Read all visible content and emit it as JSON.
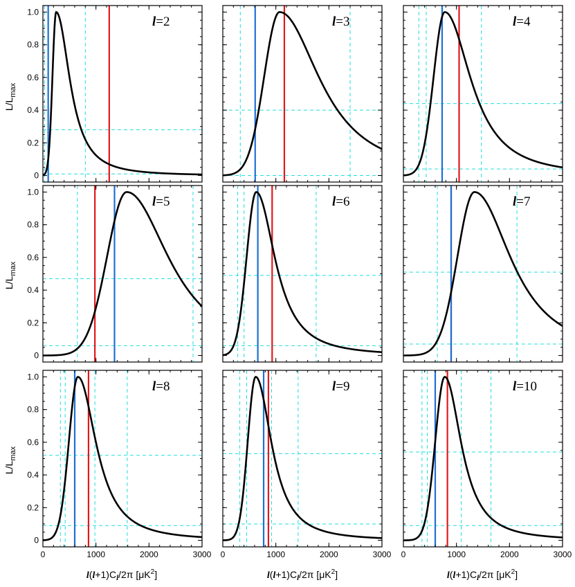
{
  "chart_data": {
    "type": "line",
    "layout": "3x3 grid",
    "x_axis": {
      "label_parts": [
        "l",
        "(",
        "l",
        "+1)C",
        "l",
        "/2π [μK",
        "2",
        "]"
      ],
      "xlim": [
        0,
        3000
      ],
      "ticks": [
        0,
        1000,
        2000,
        3000
      ],
      "tick_labels": [
        "0",
        "1000",
        "2000",
        "3000"
      ]
    },
    "y_axis": {
      "label_parts": [
        "L/L",
        "max"
      ],
      "ylim": [
        -0.04,
        1.04
      ],
      "ticks": [
        0,
        0.2,
        0.4,
        0.6,
        0.8,
        1.0
      ],
      "tick_labels": [
        "0",
        "0.2",
        "0.4",
        "0.6",
        "0.8",
        "1.0"
      ]
    },
    "colors": {
      "curve": "#000000",
      "blue_line": "#1f6fd6",
      "red_line": "#e0191c",
      "dashed": "#22dddd"
    },
    "panels": [
      {
        "ell_symbol": "l",
        "label": "=2",
        "peak_x": 250,
        "sigma_lo": 70,
        "sigma_hi": 230,
        "blue_x": 100,
        "red_x": 1250,
        "dashed_v": [
          30,
          100,
          800
        ],
        "dashed_h": [
          0.01,
          0.28
        ]
      },
      {
        "ell_symbol": "l",
        "label": "=3",
        "peak_x": 1070,
        "sigma_lo": 290,
        "sigma_hi": 680,
        "blue_x": 610,
        "red_x": 1160,
        "dashed_v": [
          330,
          2400
        ],
        "dashed_h": [
          0.0,
          0.4
        ]
      },
      {
        "ell_symbol": "l",
        "label": "=4",
        "peak_x": 780,
        "sigma_lo": 210,
        "sigma_hi": 440,
        "blue_x": 730,
        "red_x": 1050,
        "dashed_v": [
          290,
          430,
          1470
        ],
        "dashed_h": [
          0.04,
          0.44
        ]
      },
      {
        "ell_symbol": "l",
        "label": "=5",
        "peak_x": 1580,
        "sigma_lo": 370,
        "sigma_hi": 720,
        "blue_x": 1350,
        "red_x": 980,
        "dashed_v": [
          650,
          2830
        ],
        "dashed_h": [
          0.06,
          0.47
        ]
      },
      {
        "ell_symbol": "l",
        "label": "=6",
        "peak_x": 630,
        "sigma_lo": 180,
        "sigma_hi": 320,
        "blue_x": 660,
        "red_x": 930,
        "dashed_v": [
          280,
          400,
          1760
        ],
        "dashed_h": [
          0.06,
          0.49
        ]
      },
      {
        "ell_symbol": "l",
        "label": "=7",
        "peak_x": 1340,
        "sigma_lo": 320,
        "sigma_hi": 620,
        "blue_x": 900,
        "red_x": 900,
        "dashed_v": [
          640,
          2140
        ],
        "dashed_h": [
          0.07,
          0.51
        ]
      },
      {
        "ell_symbol": "l",
        "label": "=8",
        "peak_x": 660,
        "sigma_lo": 170,
        "sigma_hi": 310,
        "blue_x": 600,
        "red_x": 860,
        "dashed_v": [
          330,
          420,
          980,
          1590
        ],
        "dashed_h": [
          0.09,
          0.52
        ]
      },
      {
        "ell_symbol": "l",
        "label": "=9",
        "peak_x": 620,
        "sigma_lo": 150,
        "sigma_hi": 270,
        "blue_x": 770,
        "red_x": 860,
        "dashed_v": [
          320,
          450,
          920,
          1420
        ],
        "dashed_h": [
          0.1,
          0.53
        ]
      },
      {
        "ell_symbol": "l",
        "label": "=10",
        "peak_x": 780,
        "sigma_lo": 180,
        "sigma_hi": 280,
        "blue_x": 600,
        "red_x": 830,
        "dashed_v": [
          350,
          450,
          1090,
          1650
        ],
        "dashed_h": [
          0.09,
          0.54
        ]
      }
    ]
  }
}
